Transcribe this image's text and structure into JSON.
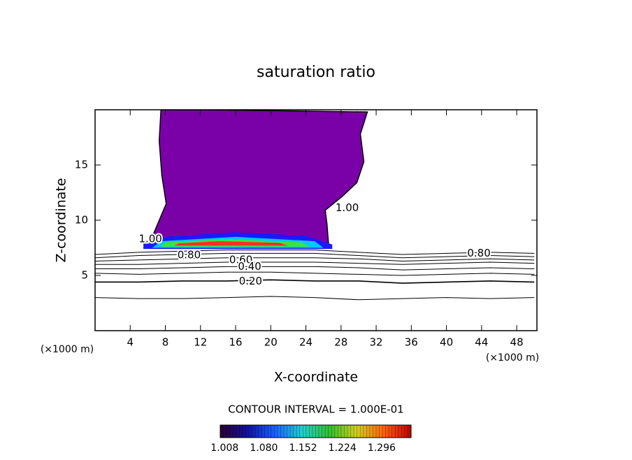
{
  "chart_data": {
    "type": "contour",
    "title": "saturation ratio",
    "xlabel": "X-coordinate",
    "ylabel": "Z-coordinate",
    "x_unit_left": "(×1000 m)",
    "x_unit_right": "(×1000 m)",
    "xlim": [
      0,
      50.3
    ],
    "ylim": [
      0,
      20
    ],
    "xticks": [
      4,
      8,
      12,
      16,
      20,
      24,
      28,
      32,
      36,
      40,
      44,
      48
    ],
    "yticks": [
      5,
      10,
      15
    ],
    "contour_x": [
      0,
      5,
      10,
      15,
      20,
      25,
      30,
      35,
      40,
      45,
      50
    ],
    "series": [
      {
        "values": [
          3.0,
          2.9,
          2.9,
          3.0,
          3.1,
          3.0,
          2.8,
          2.9,
          3.0,
          2.9,
          3.0
        ]
      },
      {
        "values": [
          4.4,
          4.4,
          4.5,
          4.5,
          4.6,
          4.5,
          4.5,
          4.3,
          4.4,
          4.5,
          4.4
        ]
      },
      {
        "values": [
          5.2,
          5.1,
          5.2,
          5.3,
          5.3,
          5.2,
          5.1,
          5.0,
          5.1,
          5.2,
          5.1
        ]
      },
      {
        "values": [
          5.6,
          5.6,
          5.7,
          5.8,
          5.8,
          5.8,
          5.7,
          5.5,
          5.6,
          5.7,
          5.6
        ]
      },
      {
        "values": [
          6.0,
          6.0,
          6.1,
          6.2,
          6.2,
          6.2,
          6.1,
          6.0,
          6.1,
          6.2,
          6.1
        ]
      },
      {
        "values": [
          6.3,
          6.4,
          6.5,
          6.6,
          6.6,
          6.6,
          6.5,
          6.3,
          6.4,
          6.5,
          6.4
        ]
      },
      {
        "values": [
          6.6,
          6.8,
          6.9,
          7.0,
          7.0,
          7.0,
          6.8,
          6.6,
          6.7,
          6.8,
          6.7
        ]
      },
      {
        "values": [
          6.9,
          7.1,
          7.2,
          7.3,
          7.3,
          7.3,
          7.1,
          6.9,
          7.0,
          7.1,
          7.0
        ]
      }
    ],
    "filled_regions": [
      {
        "color": "#7a00a8",
        "x": [
          7.5,
          11.6,
          12.3,
          31.0,
          30.2,
          30.6,
          29.8,
          28.2,
          26.2,
          26.4,
          26.6,
          6.0,
          6.3,
          8.1,
          7.6,
          7.3
        ],
        "y": [
          20,
          20,
          20,
          19.8,
          17.8,
          15.3,
          13.4,
          12.2,
          10.9,
          9.65,
          7.6,
          7.5,
          8.1,
          11.5,
          14.05,
          17.2
        ]
      },
      {
        "color": "#1a1aff",
        "x": [
          5.5,
          27.0,
          27.0,
          24.0,
          16.0,
          8.0,
          5.5
        ],
        "y": [
          7.4,
          7.4,
          7.8,
          8.6,
          8.9,
          8.5,
          7.9
        ]
      },
      {
        "color": "#00c8ff",
        "x": [
          6.5,
          26.0,
          25.0,
          16.0,
          7.5
        ],
        "y": [
          7.5,
          7.5,
          8.1,
          8.5,
          8.1
        ]
      },
      {
        "color": "#40e040",
        "x": [
          7.5,
          24.5,
          23.5,
          15.0,
          8.0
        ],
        "y": [
          7.6,
          7.6,
          8.0,
          8.3,
          8.0
        ]
      },
      {
        "color": "#ff3020",
        "x": [
          9.0,
          22.0,
          21.0,
          14.0,
          9.5
        ],
        "y": [
          7.7,
          7.7,
          7.95,
          8.1,
          7.9
        ]
      }
    ],
    "contour_labels": [
      {
        "value": 0.8,
        "label": "0.80",
        "x": 10.7,
        "y": 6.85
      },
      {
        "value": 0.6,
        "label": "0.60",
        "x": 16.6,
        "y": 6.4
      },
      {
        "value": 0.4,
        "label": "0.40",
        "x": 17.6,
        "y": 5.8
      },
      {
        "value": 0.2,
        "label": "0.20",
        "x": 17.7,
        "y": 4.45
      },
      {
        "value": 1.0,
        "label": "1.00",
        "x": 6.3,
        "y": 8.3
      },
      {
        "value": 0.8,
        "label": "0.80",
        "x": 43.7,
        "y": 7.0
      },
      {
        "value": 1.0,
        "label": "1.00",
        "x": 28.7,
        "y": 11.1
      }
    ],
    "contour_interval": "CONTOUR INTERVAL = 1.000E-01",
    "colorbar": {
      "clim": [
        1.0,
        1.35
      ],
      "colors": [
        "#2a0030",
        "#1010a0",
        "#1a60ff",
        "#20d0d0",
        "#30c030",
        "#d0d020",
        "#ff6010",
        "#c00000"
      ],
      "ticks": [
        1.008,
        {
          "value": 1.08,
          "label": "1.080"
        },
        1.152,
        1.224,
        1.296
      ]
    }
  }
}
